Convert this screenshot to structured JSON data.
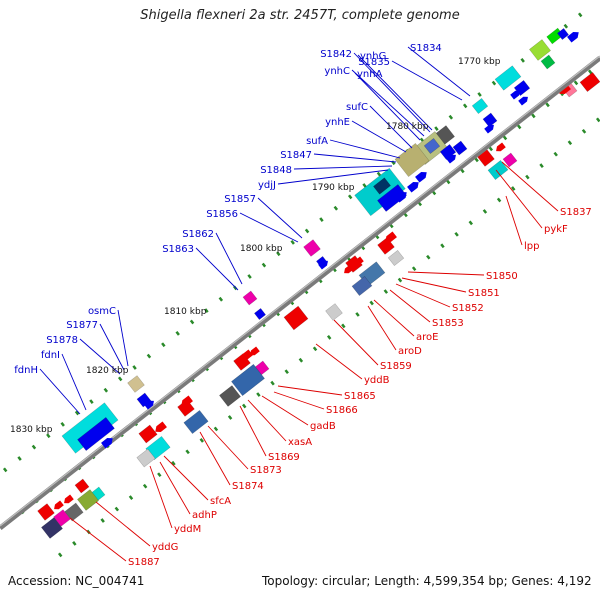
{
  "title": "Shigella flexneri 2a str. 2457T, complete genome",
  "footer": {
    "accession": "Accession: NC_004741",
    "summary": "Topology: circular; Length: 4,599,354 bp; Genes: 4,192"
  },
  "colors": {
    "backbone": "#7a7a7a",
    "forward_label": "#0000cc",
    "reverse_label": "#dd0000",
    "tick": "#2a8a2a"
  },
  "kbp_ticks": [
    "1770 kbp",
    "1780 kbp",
    "1790 kbp",
    "1800 kbp",
    "1810 kbp",
    "1820 kbp",
    "1830 kbp"
  ],
  "forward_labels": [
    "S1834",
    "S1835",
    "S1842",
    "ynhG",
    "ynhC",
    "ynhA",
    "sufC",
    "ynhE",
    "sufA",
    "S1847",
    "S1848",
    "ydjJ",
    "S1857",
    "S1856",
    "S1862",
    "S1863",
    "osmC",
    "S1877",
    "S1878",
    "fdnI",
    "fdnH"
  ],
  "reverse_labels": [
    "S1837",
    "pykF",
    "lpp",
    "S1850",
    "S1851",
    "S1852",
    "S1853",
    "aroE",
    "aroD",
    "S1859",
    "yddB",
    "S1865",
    "S1866",
    "gadB",
    "xasA",
    "S1869",
    "S1873",
    "S1874",
    "sfcA",
    "adhP",
    "yddM",
    "yddG",
    "S1887"
  ]
}
